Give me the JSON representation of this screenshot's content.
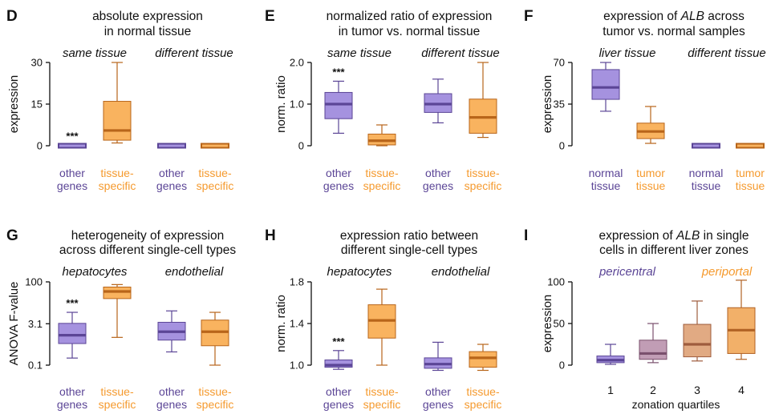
{
  "colors": {
    "purple_fill": "#a592df",
    "purple_line": "#5b4596",
    "purple_text": "#5b4596",
    "orange_fill": "#f9b35f",
    "orange_line": "#b8651a",
    "orange_text": "#f59a2e",
    "axis": "#111111"
  },
  "chart_data": [
    {
      "type": "box",
      "letter": "D",
      "title": [
        "absolute expression",
        "in normal tissue"
      ],
      "ylabel": "expression",
      "yscale": "linear",
      "ylim": [
        0,
        30
      ],
      "yticks": [
        0,
        15,
        30
      ],
      "ytick_labels": [
        "0",
        "15",
        "30"
      ],
      "groups": [
        "same tissue",
        "different tissue"
      ],
      "boxes": [
        {
          "group": 0,
          "color": "purple",
          "label": [
            "other",
            "genes"
          ],
          "whislo": 0,
          "q1": 0,
          "med": 0,
          "q3": 0.1,
          "whishi": 0.2
        },
        {
          "group": 0,
          "color": "orange",
          "label": [
            "tissue-",
            "specific"
          ],
          "whislo": 1,
          "q1": 2,
          "med": 5.5,
          "q3": 16,
          "whishi": 30
        },
        {
          "group": 1,
          "color": "purple",
          "label": [
            "other",
            "genes"
          ],
          "whislo": 0,
          "q1": 0,
          "med": 0,
          "q3": 0.1,
          "whishi": 0.2
        },
        {
          "group": 1,
          "color": "orange",
          "label": [
            "tissue-",
            "specific"
          ],
          "whislo": 0,
          "q1": 0,
          "med": 0,
          "q3": 0.1,
          "whishi": 0.2
        }
      ],
      "annotations": [
        {
          "box": 0,
          "text": "***"
        }
      ]
    },
    {
      "type": "box",
      "letter": "E",
      "title": [
        "normalized ratio of expression",
        "in tumor vs. normal tissue"
      ],
      "ylabel": "norm. ratio",
      "yscale": "linear",
      "ylim": [
        0,
        2
      ],
      "yticks": [
        0,
        1,
        2
      ],
      "ytick_labels": [
        "0",
        "1.0",
        "2.0"
      ],
      "groups": [
        "same tissue",
        "different tissue"
      ],
      "boxes": [
        {
          "group": 0,
          "color": "purple",
          "label": [
            "other",
            "genes"
          ],
          "whislo": 0.3,
          "q1": 0.65,
          "med": 1.0,
          "q3": 1.28,
          "whishi": 1.55
        },
        {
          "group": 0,
          "color": "orange",
          "label": [
            "tissue-",
            "specific"
          ],
          "whislo": 0,
          "q1": 0.02,
          "med": 0.12,
          "q3": 0.28,
          "whishi": 0.5
        },
        {
          "group": 1,
          "color": "purple",
          "label": [
            "other",
            "genes"
          ],
          "whislo": 0.55,
          "q1": 0.8,
          "med": 1.0,
          "q3": 1.25,
          "whishi": 1.6
        },
        {
          "group": 1,
          "color": "orange",
          "label": [
            "tissue-",
            "specific"
          ],
          "whislo": 0.2,
          "q1": 0.3,
          "med": 0.68,
          "q3": 1.12,
          "whishi": 2.0
        }
      ],
      "annotations": [
        {
          "box": 0,
          "text": "***"
        }
      ]
    },
    {
      "type": "box",
      "letter": "F",
      "title": [
        "expression of ALB across",
        "tumor vs. normal samples"
      ],
      "title_italic": "ALB",
      "ylabel": "expression",
      "yscale": "linear",
      "ylim": [
        0,
        70
      ],
      "yticks": [
        0,
        35,
        70
      ],
      "ytick_labels": [
        "0",
        "35",
        "70"
      ],
      "groups": [
        "liver tissue",
        "different tissue"
      ],
      "boxes": [
        {
          "group": 0,
          "color": "purple",
          "label": [
            "normal",
            "tissue"
          ],
          "whislo": 29,
          "q1": 39,
          "med": 49,
          "q3": 64,
          "whishi": 70
        },
        {
          "group": 0,
          "color": "orange",
          "label": [
            "tumor",
            "tissue"
          ],
          "whislo": 2,
          "q1": 6,
          "med": 12,
          "q3": 19,
          "whishi": 33
        },
        {
          "group": 1,
          "color": "purple",
          "label": [
            "normal",
            "tissue"
          ],
          "whislo": 0,
          "q1": 0,
          "med": 0,
          "q3": 0.3,
          "whishi": 0.5
        },
        {
          "group": 1,
          "color": "orange",
          "label": [
            "tumor",
            "tissue"
          ],
          "whislo": 0,
          "q1": 0,
          "med": 0,
          "q3": 0.3,
          "whishi": 0.5
        }
      ],
      "annotations": []
    },
    {
      "type": "box",
      "letter": "G",
      "title": [
        "heterogeneity of expression",
        "across different single-cell types"
      ],
      "ylabel": "ANOVA F-value",
      "yscale": "log",
      "ylim": [
        0.1,
        100
      ],
      "yticks": [
        0.1,
        3.1,
        100
      ],
      "ytick_labels": [
        "0.1",
        "3.1",
        "100"
      ],
      "groups": [
        "hepatocytes",
        "endothelial"
      ],
      "boxes": [
        {
          "group": 0,
          "color": "purple",
          "label": [
            "other",
            "genes"
          ],
          "whislo": 0.18,
          "q1": 0.6,
          "med": 1.2,
          "q3": 3.2,
          "whishi": 8
        },
        {
          "group": 0,
          "color": "orange",
          "label": [
            "tissue-",
            "specific"
          ],
          "whislo": 1.0,
          "q1": 25,
          "med": 45,
          "q3": 65,
          "whishi": 80
        },
        {
          "group": 1,
          "color": "purple",
          "label": [
            "other",
            "genes"
          ],
          "whislo": 0.3,
          "q1": 0.8,
          "med": 1.6,
          "q3": 3.5,
          "whishi": 9
        },
        {
          "group": 1,
          "color": "orange",
          "label": [
            "tissue-",
            "specific"
          ],
          "whislo": 0.1,
          "q1": 0.5,
          "med": 1.6,
          "q3": 4.2,
          "whishi": 8
        }
      ],
      "annotations": [
        {
          "box": 0,
          "text": "***"
        }
      ]
    },
    {
      "type": "box",
      "letter": "H",
      "title": [
        "expression ratio between",
        "different single-cell types"
      ],
      "ylabel": "norm. ratio",
      "yscale": "linear",
      "ylim": [
        1.0,
        1.8
      ],
      "yticks": [
        1.0,
        1.4,
        1.8
      ],
      "ytick_labels": [
        "1.0",
        "1.4",
        "1.8"
      ],
      "groups": [
        "hepatocytes",
        "endothelial"
      ],
      "boxes": [
        {
          "group": 0,
          "color": "purple",
          "label": [
            "other",
            "genes"
          ],
          "whislo": 0.96,
          "q1": 0.98,
          "med": 1.0,
          "q3": 1.05,
          "whishi": 1.14
        },
        {
          "group": 0,
          "color": "orange",
          "label": [
            "tissue-",
            "specific"
          ],
          "whislo": 1.0,
          "q1": 1.26,
          "med": 1.43,
          "q3": 1.58,
          "whishi": 1.73
        },
        {
          "group": 1,
          "color": "purple",
          "label": [
            "other",
            "genes"
          ],
          "whislo": 0.95,
          "q1": 0.97,
          "med": 1.01,
          "q3": 1.07,
          "whishi": 1.22
        },
        {
          "group": 1,
          "color": "orange",
          "label": [
            "tissue-",
            "specific"
          ],
          "whislo": 0.95,
          "q1": 0.98,
          "med": 1.07,
          "q3": 1.13,
          "whishi": 1.2
        }
      ],
      "annotations": [
        {
          "box": 0,
          "text": "***"
        }
      ]
    },
    {
      "type": "box",
      "letter": "I",
      "title": [
        "expression of ALB in single",
        "cells in different liver zones"
      ],
      "title_italic": "ALB",
      "ylabel": "expression",
      "yscale": "linear",
      "ylim": [
        0,
        100
      ],
      "yticks": [
        0,
        50,
        100
      ],
      "ytick_labels": [
        "0",
        "50",
        "100"
      ],
      "xlabel": "zonation quartiles",
      "legend": [
        {
          "text": "pericentral",
          "color": "purple"
        },
        {
          "text": "periportal",
          "color": "orange"
        }
      ],
      "boxes": [
        {
          "color": "mix1",
          "label": [
            "1"
          ],
          "whislo": 1,
          "q1": 3,
          "med": 6,
          "q3": 11,
          "whishi": 25
        },
        {
          "color": "mix2",
          "label": [
            "2"
          ],
          "whislo": 3,
          "q1": 7,
          "med": 14,
          "q3": 30,
          "whishi": 50
        },
        {
          "color": "mix3",
          "label": [
            "3"
          ],
          "whislo": 5,
          "q1": 10,
          "med": 25,
          "q3": 49,
          "whishi": 77
        },
        {
          "color": "mix4",
          "label": [
            "4"
          ],
          "whislo": 7,
          "q1": 14,
          "med": 42,
          "q3": 69,
          "whishi": 102
        }
      ],
      "annotations": []
    }
  ]
}
